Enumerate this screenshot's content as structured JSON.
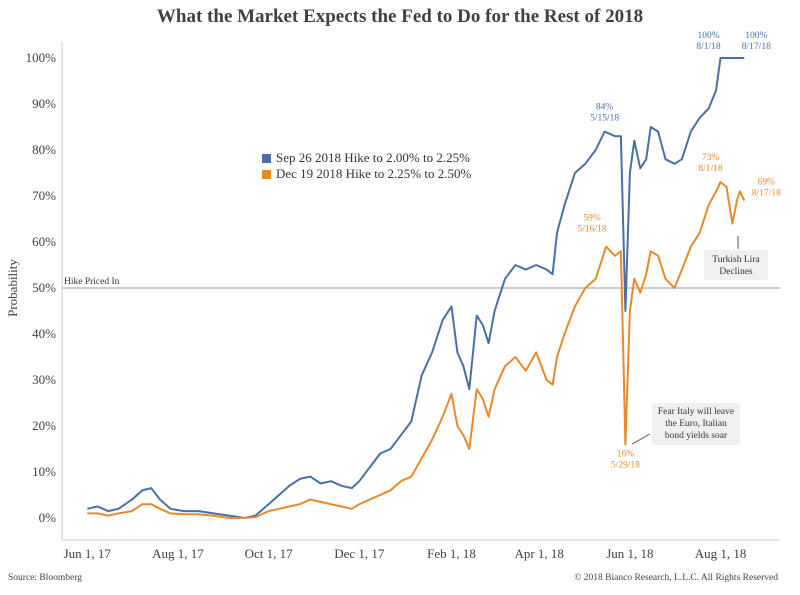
{
  "chart_data": {
    "type": "line",
    "title": "What the Market Expects the Fed to Do for the Rest of 2018",
    "ylabel": "Probability",
    "ylim": [
      0,
      100
    ],
    "yticks": [
      0,
      10,
      20,
      30,
      40,
      50,
      60,
      70,
      80,
      90,
      100
    ],
    "ytick_labels": [
      "0%",
      "10%",
      "20%",
      "30%",
      "40%",
      "50%",
      "60%",
      "70%",
      "80%",
      "90%",
      "100%"
    ],
    "xlim": [
      "2017-05-15",
      "2018-09-10"
    ],
    "xticks": [
      "2017-06-01",
      "2017-08-01",
      "2017-10-01",
      "2017-12-01",
      "2018-02-01",
      "2018-04-01",
      "2018-06-01",
      "2018-08-01"
    ],
    "xtick_labels": [
      "Jun 1, 17",
      "Aug 1, 17",
      "Oct 1, 17",
      "Dec 1, 17",
      "Feb 1, 18",
      "Apr 1, 18",
      "Jun 1, 18",
      "Aug 1, 18"
    ],
    "reference_line": {
      "y": 50,
      "label": "Hike Priced In"
    },
    "legend_position": "upper-middle",
    "series": [
      {
        "name": "Sep 26 2018 Hike to 2.00% to 2.25%",
        "color": "#4a6fa5",
        "points": [
          [
            "2017-06-01",
            2
          ],
          [
            "2017-06-08",
            2.5
          ],
          [
            "2017-06-15",
            1.5
          ],
          [
            "2017-06-22",
            2
          ],
          [
            "2017-07-01",
            4
          ],
          [
            "2017-07-08",
            6
          ],
          [
            "2017-07-14",
            6.5
          ],
          [
            "2017-07-20",
            4
          ],
          [
            "2017-07-27",
            2
          ],
          [
            "2017-08-05",
            1.5
          ],
          [
            "2017-08-15",
            1.5
          ],
          [
            "2017-08-25",
            1
          ],
          [
            "2017-09-05",
            0.5
          ],
          [
            "2017-09-15",
            0
          ],
          [
            "2017-09-22",
            0.5
          ],
          [
            "2017-10-01",
            3
          ],
          [
            "2017-10-08",
            5
          ],
          [
            "2017-10-15",
            7
          ],
          [
            "2017-10-22",
            8.5
          ],
          [
            "2017-10-29",
            9
          ],
          [
            "2017-11-05",
            7.5
          ],
          [
            "2017-11-12",
            8
          ],
          [
            "2017-11-19",
            7
          ],
          [
            "2017-11-26",
            6.5
          ],
          [
            "2017-12-01",
            8
          ],
          [
            "2017-12-08",
            11
          ],
          [
            "2017-12-15",
            14
          ],
          [
            "2017-12-22",
            15
          ],
          [
            "2017-12-29",
            18
          ],
          [
            "2018-01-05",
            21
          ],
          [
            "2018-01-12",
            31
          ],
          [
            "2018-01-19",
            36
          ],
          [
            "2018-01-26",
            43
          ],
          [
            "2018-02-01",
            46
          ],
          [
            "2018-02-05",
            36
          ],
          [
            "2018-02-09",
            33
          ],
          [
            "2018-02-13",
            28
          ],
          [
            "2018-02-18",
            44
          ],
          [
            "2018-02-22",
            42
          ],
          [
            "2018-02-26",
            38
          ],
          [
            "2018-03-02",
            45
          ],
          [
            "2018-03-09",
            52
          ],
          [
            "2018-03-16",
            55
          ],
          [
            "2018-03-23",
            54
          ],
          [
            "2018-03-30",
            55
          ],
          [
            "2018-04-06",
            54
          ],
          [
            "2018-04-10",
            53
          ],
          [
            "2018-04-13",
            62
          ],
          [
            "2018-04-18",
            68
          ],
          [
            "2018-04-25",
            75
          ],
          [
            "2018-05-02",
            77
          ],
          [
            "2018-05-09",
            80
          ],
          [
            "2018-05-15",
            84
          ],
          [
            "2018-05-22",
            83
          ],
          [
            "2018-05-26",
            83
          ],
          [
            "2018-05-29",
            45
          ],
          [
            "2018-06-01",
            75
          ],
          [
            "2018-06-04",
            82
          ],
          [
            "2018-06-08",
            76
          ],
          [
            "2018-06-12",
            78
          ],
          [
            "2018-06-15",
            85
          ],
          [
            "2018-06-20",
            84
          ],
          [
            "2018-06-25",
            78
          ],
          [
            "2018-07-01",
            77
          ],
          [
            "2018-07-06",
            78
          ],
          [
            "2018-07-12",
            84
          ],
          [
            "2018-07-18",
            87
          ],
          [
            "2018-07-24",
            89
          ],
          [
            "2018-07-29",
            93
          ],
          [
            "2018-08-01",
            100
          ],
          [
            "2018-08-17",
            100
          ]
        ]
      },
      {
        "name": "Dec 19 2018 Hike to 2.25% to 2.50%",
        "color": "#e8892b",
        "points": [
          [
            "2017-06-01",
            1
          ],
          [
            "2017-06-08",
            1
          ],
          [
            "2017-06-15",
            0.5
          ],
          [
            "2017-06-22",
            1
          ],
          [
            "2017-07-01",
            1.5
          ],
          [
            "2017-07-08",
            3
          ],
          [
            "2017-07-14",
            3
          ],
          [
            "2017-07-20",
            2
          ],
          [
            "2017-07-27",
            1
          ],
          [
            "2017-08-05",
            0.8
          ],
          [
            "2017-08-15",
            0.8
          ],
          [
            "2017-08-25",
            0.5
          ],
          [
            "2017-09-05",
            0
          ],
          [
            "2017-09-15",
            0
          ],
          [
            "2017-09-22",
            0.2
          ],
          [
            "2017-10-01",
            1.5
          ],
          [
            "2017-10-08",
            2
          ],
          [
            "2017-10-15",
            2.5
          ],
          [
            "2017-10-22",
            3
          ],
          [
            "2017-10-29",
            4
          ],
          [
            "2017-11-05",
            3.5
          ],
          [
            "2017-11-12",
            3
          ],
          [
            "2017-11-19",
            2.5
          ],
          [
            "2017-11-26",
            2
          ],
          [
            "2017-12-01",
            3
          ],
          [
            "2017-12-08",
            4
          ],
          [
            "2017-12-15",
            5
          ],
          [
            "2017-12-22",
            6
          ],
          [
            "2017-12-29",
            8
          ],
          [
            "2018-01-05",
            9
          ],
          [
            "2018-01-12",
            13
          ],
          [
            "2018-01-19",
            17
          ],
          [
            "2018-01-26",
            22
          ],
          [
            "2018-02-01",
            27
          ],
          [
            "2018-02-05",
            20
          ],
          [
            "2018-02-09",
            18
          ],
          [
            "2018-02-13",
            15
          ],
          [
            "2018-02-18",
            28
          ],
          [
            "2018-02-22",
            26
          ],
          [
            "2018-02-26",
            22
          ],
          [
            "2018-03-02",
            28
          ],
          [
            "2018-03-09",
            33
          ],
          [
            "2018-03-16",
            35
          ],
          [
            "2018-03-23",
            32
          ],
          [
            "2018-03-30",
            36
          ],
          [
            "2018-04-06",
            30
          ],
          [
            "2018-04-10",
            29
          ],
          [
            "2018-04-13",
            35
          ],
          [
            "2018-04-18",
            40
          ],
          [
            "2018-04-25",
            46
          ],
          [
            "2018-05-02",
            50
          ],
          [
            "2018-05-09",
            52
          ],
          [
            "2018-05-16",
            59
          ],
          [
            "2018-05-22",
            57
          ],
          [
            "2018-05-26",
            58
          ],
          [
            "2018-05-29",
            16
          ],
          [
            "2018-06-01",
            45
          ],
          [
            "2018-06-04",
            52
          ],
          [
            "2018-06-08",
            49
          ],
          [
            "2018-06-12",
            53
          ],
          [
            "2018-06-15",
            58
          ],
          [
            "2018-06-20",
            57
          ],
          [
            "2018-06-25",
            52
          ],
          [
            "2018-07-01",
            50
          ],
          [
            "2018-07-06",
            54
          ],
          [
            "2018-07-12",
            59
          ],
          [
            "2018-07-18",
            62
          ],
          [
            "2018-07-24",
            68
          ],
          [
            "2018-07-29",
            71
          ],
          [
            "2018-08-01",
            73
          ],
          [
            "2018-08-05",
            72
          ],
          [
            "2018-08-09",
            64
          ],
          [
            "2018-08-12",
            69
          ],
          [
            "2018-08-14",
            71
          ],
          [
            "2018-08-17",
            69
          ]
        ]
      }
    ],
    "annotations": [
      {
        "series": 0,
        "x": "2018-05-15",
        "y": 84,
        "lines": [
          "84%",
          "5/15/18"
        ]
      },
      {
        "series": 0,
        "x": "2018-08-01",
        "y": 100,
        "lines": [
          "100%",
          "8/1/18"
        ]
      },
      {
        "series": 0,
        "x": "2018-08-17",
        "y": 100,
        "lines": [
          "100%",
          "8/17/18"
        ]
      },
      {
        "series": 1,
        "x": "2018-05-16",
        "y": 59,
        "lines": [
          "59%",
          "5/16/18"
        ]
      },
      {
        "series": 1,
        "x": "2018-05-29",
        "y": 16,
        "lines": [
          "16%",
          "5/29/18"
        ]
      },
      {
        "series": 1,
        "x": "2018-08-01",
        "y": 73,
        "lines": [
          "73%",
          "8/1/18"
        ]
      },
      {
        "series": 1,
        "x": "2018-08-17",
        "y": 69,
        "lines": [
          "69%",
          "8/17/18"
        ]
      }
    ],
    "notes": [
      {
        "lines": [
          "Turkish Lira",
          "Declines"
        ]
      },
      {
        "lines": [
          "Fear Italy will leave",
          "the Euro, Italian",
          "bond yields soar"
        ]
      }
    ]
  },
  "footer": {
    "source": "Source: Bloomberg",
    "copyright": "© 2018 Bianco Research, L.L.C. All Rights Reserved"
  }
}
